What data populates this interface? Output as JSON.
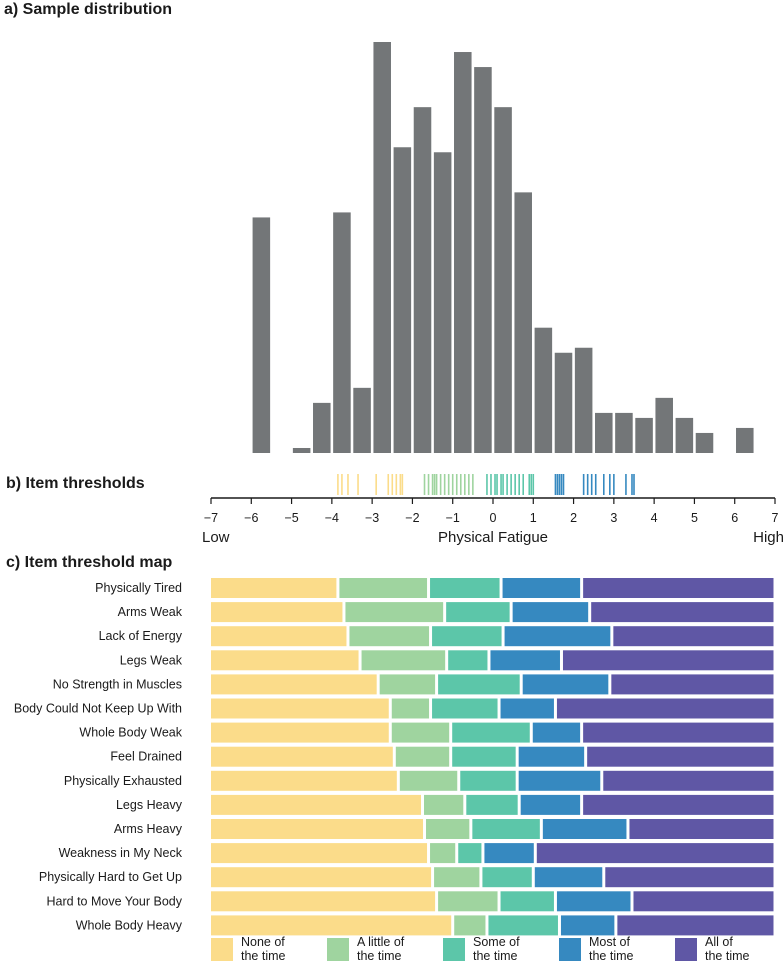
{
  "chart_data": [
    {
      "panel": "a",
      "type": "bar",
      "title": "a) Sample distribution",
      "bin_width": 0.5,
      "bins": [
        {
          "x": -5.75,
          "value": 47
        },
        {
          "x": -4.75,
          "value": 1
        },
        {
          "x": -4.25,
          "value": 10
        },
        {
          "x": -3.75,
          "value": 48
        },
        {
          "x": -3.25,
          "value": 13
        },
        {
          "x": -2.75,
          "value": 82
        },
        {
          "x": -2.25,
          "value": 61
        },
        {
          "x": -1.75,
          "value": 69
        },
        {
          "x": -1.25,
          "value": 60
        },
        {
          "x": -0.75,
          "value": 80
        },
        {
          "x": -0.25,
          "value": 77
        },
        {
          "x": 0.25,
          "value": 69
        },
        {
          "x": 0.75,
          "value": 52
        },
        {
          "x": 1.25,
          "value": 25
        },
        {
          "x": 1.75,
          "value": 20
        },
        {
          "x": 2.25,
          "value": 21
        },
        {
          "x": 2.75,
          "value": 8
        },
        {
          "x": 3.25,
          "value": 8
        },
        {
          "x": 3.75,
          "value": 7
        },
        {
          "x": 4.25,
          "value": 11
        },
        {
          "x": 4.75,
          "value": 7
        },
        {
          "x": 5.25,
          "value": 4
        },
        {
          "x": 6.25,
          "value": 5
        }
      ],
      "ymax": 82,
      "bar_color": "#737678"
    },
    {
      "panel": "b",
      "type": "scatter",
      "title": "b) Item thresholds",
      "xlim": [
        -7,
        7
      ],
      "ticks": [
        "−7",
        "−6",
        "−5",
        "−4",
        "−3",
        "−2",
        "−1",
        "0",
        "1",
        "2",
        "3",
        "4",
        "5",
        "6",
        "7"
      ],
      "xlabel": "Physical Fatigue",
      "low_label": "Low",
      "high_label": "High",
      "threshold_sets": [
        {
          "category": "None of the time",
          "values": [
            -3.85,
            -3.75,
            -3.6,
            -3.35,
            -2.9,
            -2.6,
            -2.5,
            -2.4,
            -2.3,
            -2.25
          ]
        },
        {
          "category": "A little of the time",
          "values": [
            -1.7,
            -1.6,
            -1.5,
            -1.45,
            -1.4,
            -1.3,
            -1.2,
            -1.1,
            -1.0,
            -0.9,
            -0.8,
            -0.7,
            -0.6,
            -0.5
          ]
        },
        {
          "category": "Some of the time",
          "values": [
            -0.15,
            -0.05,
            0.05,
            0.1,
            0.2,
            0.25,
            0.35,
            0.45,
            0.55,
            0.65,
            0.75,
            0.9,
            0.95,
            1.0
          ]
        },
        {
          "category": "Most of the time",
          "values": [
            1.55,
            1.6,
            1.65,
            1.7,
            1.75,
            2.25,
            2.35,
            2.45,
            2.55,
            2.75,
            2.9,
            3.0,
            3.3,
            3.45,
            3.5
          ]
        }
      ]
    },
    {
      "panel": "c",
      "type": "bar",
      "stacked": true,
      "orientation": "horizontal",
      "title": "c) Item threshold map",
      "xlim": [
        -7,
        7
      ],
      "categories": [
        "None of\nthe time",
        "A little of\nthe time",
        "Some of\nthe time",
        "Most of\nthe time",
        "All of\nthe time"
      ],
      "items": [
        {
          "label": "Physically Tired",
          "thresholds": [
            -3.85,
            -1.6,
            0.2,
            2.2
          ]
        },
        {
          "label": "Arms Weak",
          "thresholds": [
            -3.7,
            -1.2,
            0.45,
            2.4
          ]
        },
        {
          "label": "Lack of Energy",
          "thresholds": [
            -3.6,
            -1.55,
            0.25,
            2.95
          ]
        },
        {
          "label": "Legs Weak",
          "thresholds": [
            -3.3,
            -1.15,
            -0.1,
            1.7
          ]
        },
        {
          "label": "No Strength in Muscles",
          "thresholds": [
            -2.85,
            -1.4,
            0.7,
            2.9
          ]
        },
        {
          "label": "Body Could Not Keep Up With",
          "thresholds": [
            -2.55,
            -1.55,
            0.15,
            1.55
          ]
        },
        {
          "label": "Whole Body Weak",
          "thresholds": [
            -2.55,
            -1.05,
            0.95,
            2.2
          ]
        },
        {
          "label": "Feel Drained",
          "thresholds": [
            -2.45,
            -1.05,
            0.6,
            2.3
          ]
        },
        {
          "label": "Physically Exhausted",
          "thresholds": [
            -2.35,
            -0.85,
            0.6,
            2.7
          ]
        },
        {
          "label": "Legs Heavy",
          "thresholds": [
            -1.75,
            -0.7,
            0.65,
            2.2
          ]
        },
        {
          "label": "Arms Heavy",
          "thresholds": [
            -1.7,
            -0.55,
            1.2,
            3.35
          ]
        },
        {
          "label": "Weakness in My Neck",
          "thresholds": [
            -1.6,
            -0.9,
            -0.25,
            1.05
          ]
        },
        {
          "label": "Physically Hard to Get Up",
          "thresholds": [
            -1.5,
            -0.3,
            1.0,
            2.75
          ]
        },
        {
          "label": "Hard to Move Your Body",
          "thresholds": [
            -1.4,
            0.15,
            1.55,
            3.45
          ]
        },
        {
          "label": "Whole Body Heavy",
          "thresholds": [
            -1.0,
            -0.15,
            1.65,
            3.05
          ]
        }
      ]
    }
  ],
  "colors": {
    "None of the time": "#fbdc8a",
    "A little of the time": "#9fd49f",
    "Some of the time": "#5cc6a9",
    "Most of the time": "#3689c0",
    "All of the time": "#5f57a5"
  },
  "axis_color": "#1a1a1a"
}
